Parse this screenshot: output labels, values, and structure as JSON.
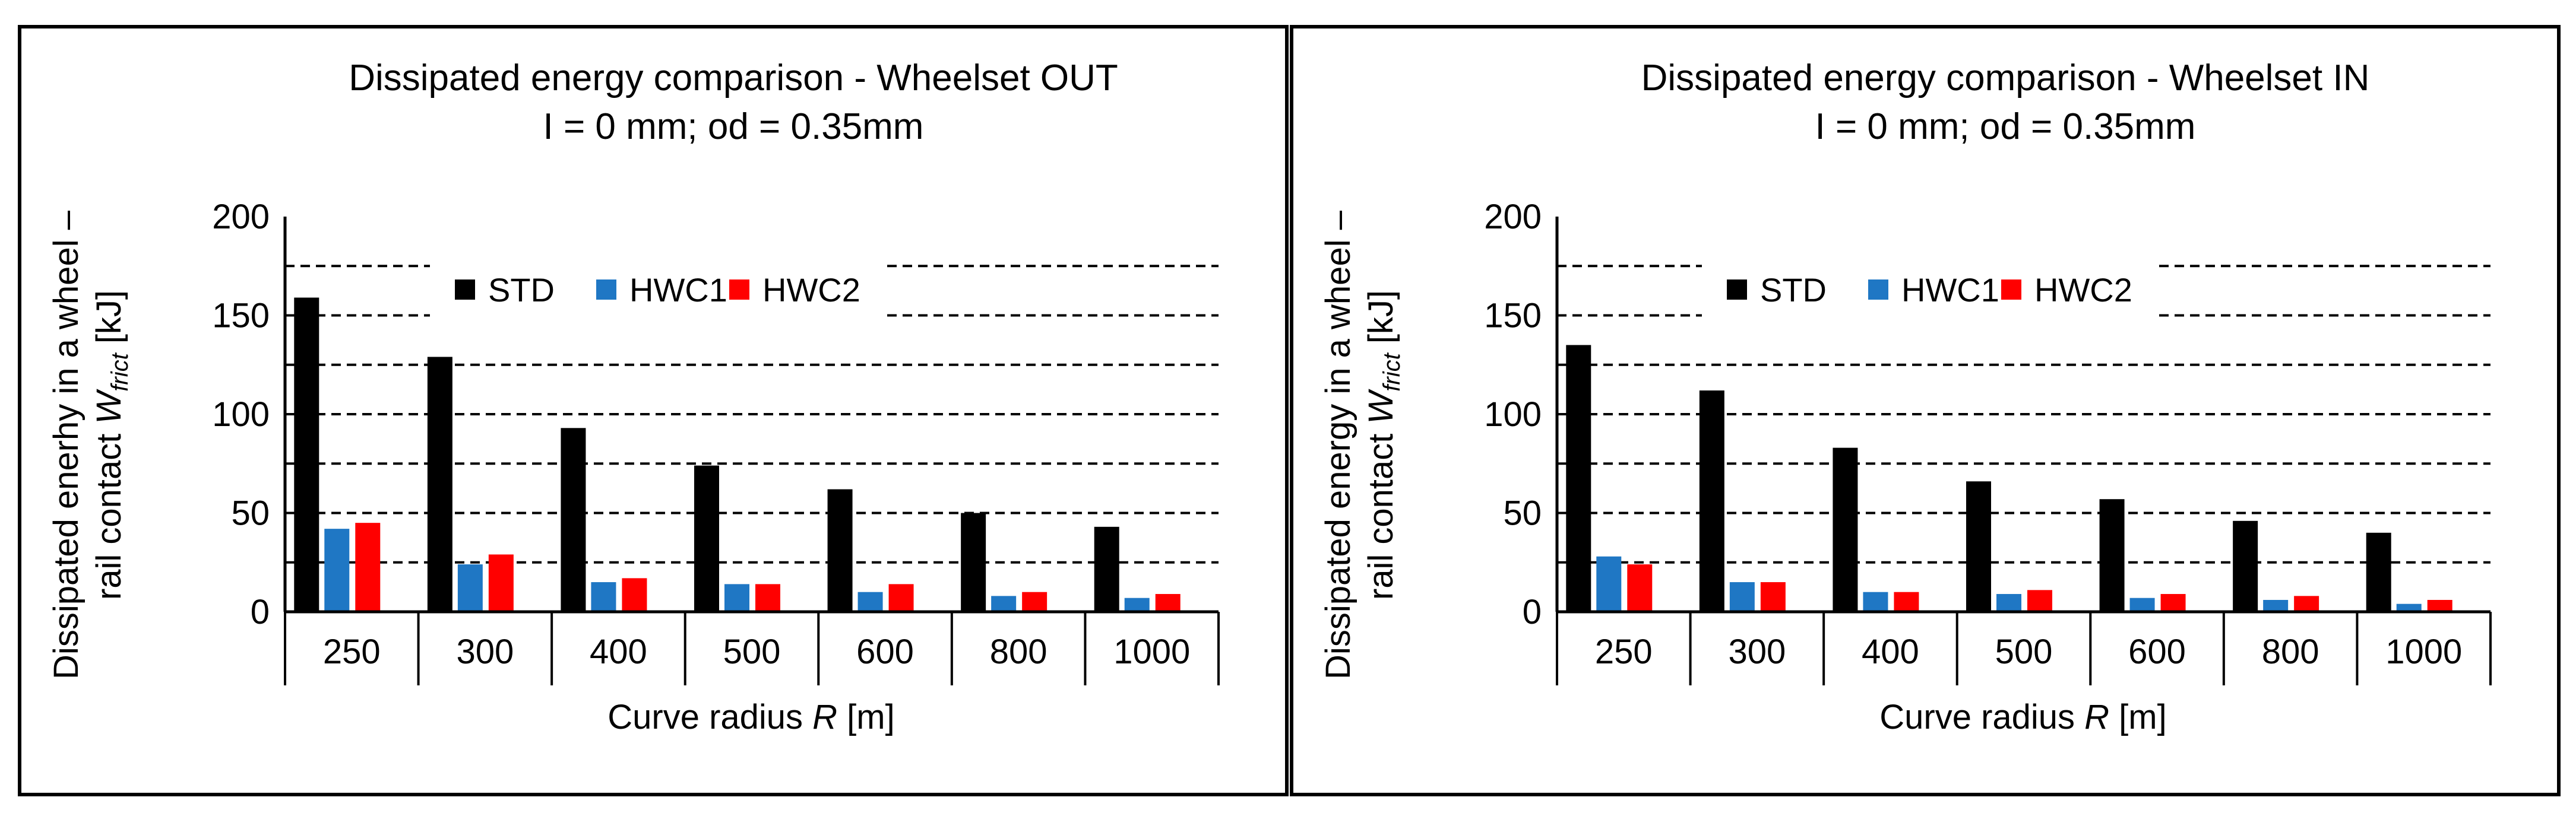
{
  "colors": {
    "STD": "#000000",
    "HWC1": "#1f77c4",
    "HWC2": "#ff0000",
    "grid": "#000000"
  },
  "chart_data": [
    {
      "type": "bar",
      "title": "Dissipated energy comparison - Wheelset OUT",
      "subtitle": "I = 0 mm; od = 0.35mm",
      "xlabel": {
        "prefix": "Curve radius ",
        "italic": "R",
        "suffix": " [m]"
      },
      "ylabel_line1": "Dissipated enerhy in a wheel –",
      "ylabel_line2": {
        "prefix": "rail contact ",
        "italic": "W",
        "sub": "frict",
        "suffix": " [kJ]"
      },
      "categories": [
        "250",
        "300",
        "400",
        "500",
        "600",
        "800",
        "1000"
      ],
      "ylim": [
        0,
        200
      ],
      "yticks": [
        "0",
        "50",
        "100",
        "150",
        "200"
      ],
      "grid_values": [
        25,
        50,
        75,
        100,
        125,
        150,
        175
      ],
      "legend_position": "top-center",
      "series": [
        {
          "name": "STD",
          "values": [
            159,
            129,
            93,
            74,
            62,
            50,
            43
          ]
        },
        {
          "name": "HWC1",
          "values": [
            42,
            24,
            15,
            14,
            10,
            8,
            7
          ]
        },
        {
          "name": "HWC2",
          "values": [
            45,
            29,
            17,
            14,
            14,
            10,
            9
          ]
        }
      ]
    },
    {
      "type": "bar",
      "title": "Dissipated energy comparison - Wheelset IN",
      "subtitle": "I = 0 mm; od = 0.35mm",
      "xlabel": {
        "prefix": "Curve radius ",
        "italic": "R",
        "suffix": " [m]"
      },
      "ylabel_line1": "Dissipated energy in a wheel –",
      "ylabel_line2": {
        "prefix": "rail contact ",
        "italic": "W",
        "sub": "frict",
        "suffix": " [kJ]"
      },
      "categories": [
        "250",
        "300",
        "400",
        "500",
        "600",
        "800",
        "1000"
      ],
      "ylim": [
        0,
        200
      ],
      "yticks": [
        "0",
        "50",
        "100",
        "150",
        "200"
      ],
      "grid_values": [
        25,
        50,
        75,
        100,
        125,
        150,
        175
      ],
      "legend_position": "top-center",
      "series": [
        {
          "name": "STD",
          "values": [
            135,
            112,
            83,
            66,
            57,
            46,
            40
          ]
        },
        {
          "name": "HWC1",
          "values": [
            28,
            15,
            10,
            9,
            7,
            6,
            4
          ]
        },
        {
          "name": "HWC2",
          "values": [
            24,
            15,
            10,
            11,
            9,
            8,
            6
          ]
        }
      ]
    }
  ]
}
